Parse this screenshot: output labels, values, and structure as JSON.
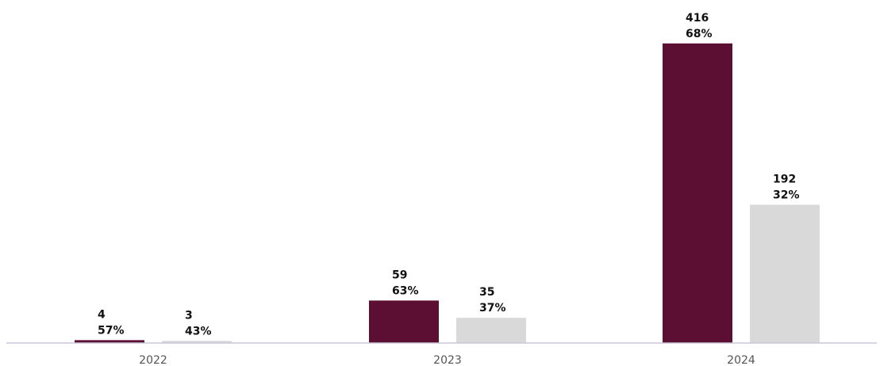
{
  "chart_data": {
    "type": "bar",
    "categories": [
      "2022",
      "2023",
      "2024"
    ],
    "series": [
      {
        "values": [
          4,
          59,
          416
        ],
        "labels": [
          "57%",
          "63%",
          "68%"
        ],
        "color": "#5c0f33"
      },
      {
        "values": [
          3,
          35,
          192
        ],
        "labels": [
          "43%",
          "37%",
          "32%"
        ],
        "color": "#d9d9d9"
      }
    ],
    "title": "",
    "xlabel": "",
    "ylabel": "",
    "ylim": [
      0,
      440
    ],
    "grid": false,
    "axis_color": "#c8c8d8"
  }
}
